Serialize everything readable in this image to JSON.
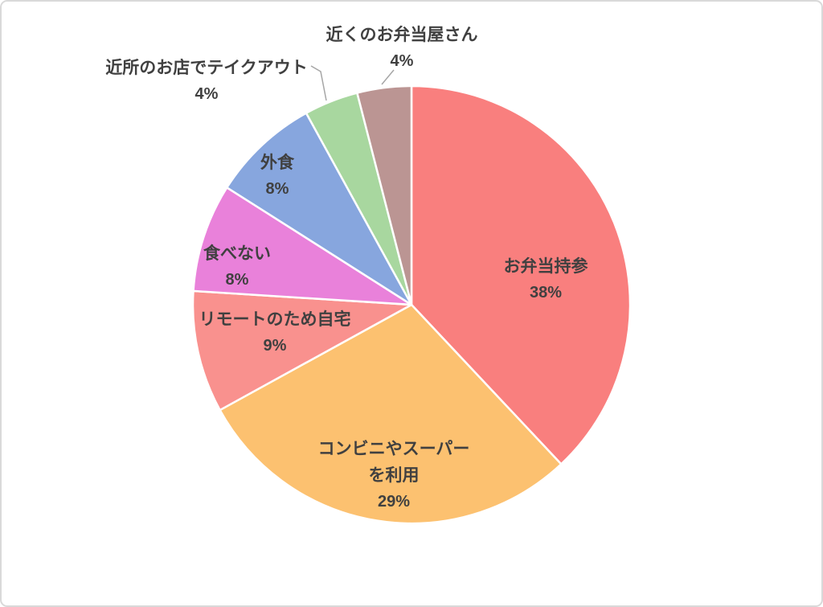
{
  "chart_data": {
    "type": "pie",
    "title": "",
    "legend": "none",
    "direction": "clockwise",
    "start_angle_deg": 0,
    "unit": "%",
    "slices": [
      {
        "label": "お弁当持参",
        "label_lines": [
          "お弁当持参"
        ],
        "value": 38,
        "pct_label": "38%",
        "color": "#F97F7E",
        "label_placement": "inside"
      },
      {
        "label": "コンビニやスーパーを利用",
        "label_lines": [
          "コンビニやスーパー",
          "を利用"
        ],
        "value": 29,
        "pct_label": "29%",
        "color": "#FCC170",
        "label_placement": "inside"
      },
      {
        "label": "リモートのため自宅",
        "label_lines": [
          "リモートのため自宅"
        ],
        "value": 9,
        "pct_label": "9%",
        "color": "#F9918E",
        "label_placement": "inside"
      },
      {
        "label": "食べない",
        "label_lines": [
          "食べない"
        ],
        "value": 8,
        "pct_label": "8%",
        "color": "#E981DA",
        "label_placement": "inside"
      },
      {
        "label": "外食",
        "label_lines": [
          "外食"
        ],
        "value": 8,
        "pct_label": "8%",
        "color": "#87A6DE",
        "label_placement": "inside"
      },
      {
        "label": "近所のお店でテイクアウト",
        "label_lines": [
          "近所のお店でテイクアウト"
        ],
        "value": 4,
        "pct_label": "4%",
        "color": "#A8D79F",
        "label_placement": "outside"
      },
      {
        "label": "近くのお弁当屋さん",
        "label_lines": [
          "近くのお弁当屋さん"
        ],
        "value": 4,
        "pct_label": "4%",
        "color": "#BB9593",
        "label_placement": "outside"
      }
    ],
    "colors": {
      "label_text": "#404040",
      "slice_border": "#FFFFFF",
      "leader_line": "#A6A6A6",
      "background": "#FFFFFF",
      "frame_border": "#D9D9D9"
    }
  }
}
